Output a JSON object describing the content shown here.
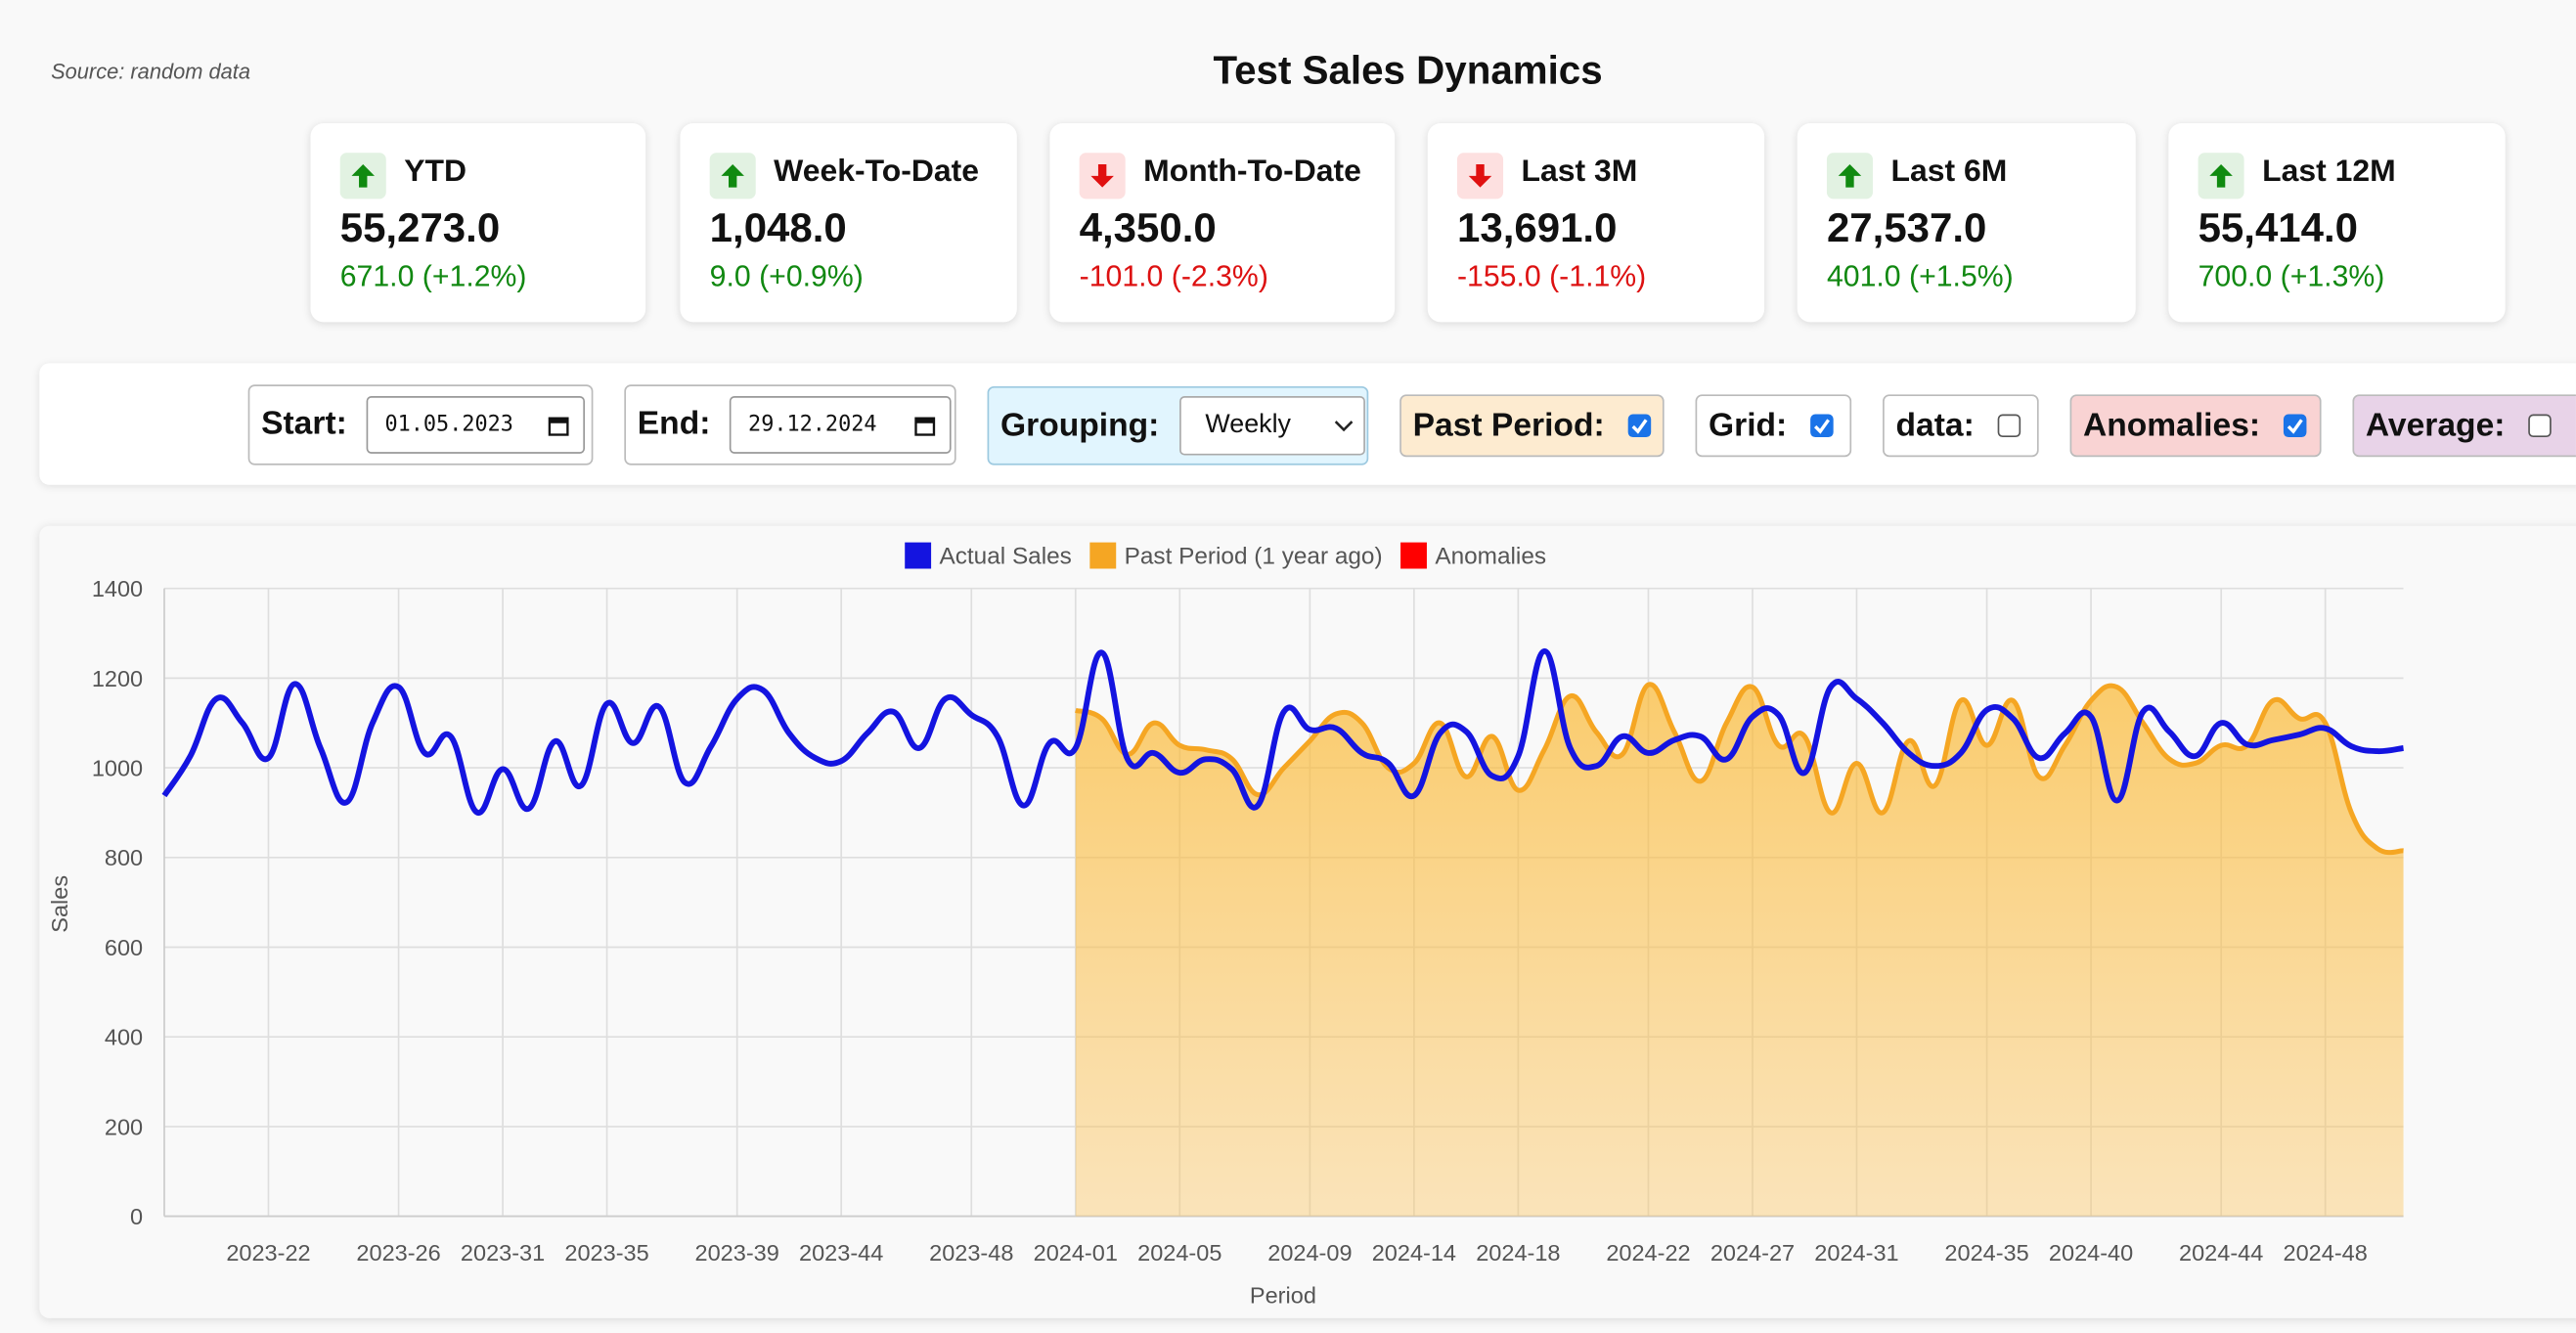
{
  "header": {
    "source": "Source: random data",
    "title": "Test Sales Dynamics"
  },
  "cards": [
    {
      "label": "YTD",
      "value": "55,273.0",
      "change": "671.0 (+1.2%)",
      "trend": "up"
    },
    {
      "label": "Week-To-Date",
      "value": "1,048.0",
      "change": "9.0 (+0.9%)",
      "trend": "up"
    },
    {
      "label": "Month-To-Date",
      "value": "4,350.0",
      "change": "-101.0 (-2.3%)",
      "trend": "down"
    },
    {
      "label": "Last 3M",
      "value": "13,691.0",
      "change": "-155.0 (-1.1%)",
      "trend": "down"
    },
    {
      "label": "Last 6M",
      "value": "27,537.0",
      "change": "401.0 (+1.5%)",
      "trend": "up"
    },
    {
      "label": "Last 12M",
      "value": "55,414.0",
      "change": "700.0 (+1.3%)",
      "trend": "up"
    }
  ],
  "controls": {
    "start": {
      "label": "Start:",
      "value": "01.05.2023"
    },
    "end": {
      "label": "End:",
      "value": "29.12.2024"
    },
    "grouping": {
      "label": "Grouping:",
      "value": "Weekly"
    },
    "toggles": [
      {
        "label": "Past Period:",
        "checked": true,
        "color": "#fdebd0"
      },
      {
        "label": "Grid:",
        "checked": true,
        "color": "#ffffff"
      },
      {
        "label": "data:",
        "checked": false,
        "color": "#ffffff"
      },
      {
        "label": "Anomalies:",
        "checked": true,
        "color": "#f9d3d3"
      },
      {
        "label": "Average:",
        "checked": false,
        "color": "#e8d3e8"
      }
    ]
  },
  "chart_data": {
    "type": "line",
    "x_label": "Period",
    "y_label": "Sales",
    "grid": true,
    "ylim": [
      0,
      1400
    ],
    "yticks": [
      0,
      200,
      400,
      600,
      800,
      1000,
      1200,
      1400
    ],
    "categories": [
      null,
      null,
      null,
      null,
      "2023-22",
      null,
      null,
      null,
      null,
      "2023-26",
      null,
      null,
      null,
      "2023-31",
      null,
      null,
      null,
      "2023-35",
      null,
      null,
      null,
      null,
      "2023-39",
      null,
      null,
      null,
      "2023-44",
      null,
      null,
      null,
      null,
      "2023-48",
      null,
      null,
      null,
      "2024-01",
      null,
      null,
      null,
      "2024-05",
      null,
      null,
      null,
      null,
      "2024-09",
      null,
      null,
      null,
      "2024-14",
      null,
      null,
      null,
      "2024-18",
      null,
      null,
      null,
      null,
      "2024-22",
      null,
      null,
      null,
      "2024-27",
      null,
      null,
      null,
      "2024-31",
      null,
      null,
      null,
      null,
      "2024-35",
      null,
      null,
      null,
      "2024-40",
      null,
      null,
      null,
      null,
      "2024-44",
      null,
      null,
      null,
      "2024-48",
      null,
      null,
      null
    ],
    "series": [
      {
        "name": "Actual Sales",
        "color": "#1414e0",
        "values": [
          938,
          1026,
          1154,
          1100,
          1022,
          1187,
          1044,
          923,
          1100,
          1180,
          1033,
          1070,
          901,
          997,
          909,
          1059,
          960,
          1143,
          1055,
          1136,
          967,
          1048,
          1154,
          1173,
          1077,
          1022,
          1015,
          1077,
          1125,
          1044,
          1154,
          1118,
          1070,
          916,
          1055,
          1044,
          1257,
          1019,
          1033,
          989,
          1019,
          997,
          916,
          1125,
          1085,
          1088,
          1033,
          1011,
          938,
          1077,
          1081,
          982,
          1026,
          1260,
          1044,
          1004,
          1070,
          1033,
          1062,
          1070,
          1019,
          1114,
          1118,
          989,
          1180,
          1154,
          1100,
          1033,
          1004,
          1033,
          1129,
          1110,
          1022,
          1077,
          1114,
          927,
          1125,
          1081,
          1026,
          1100,
          1052,
          1062,
          1074,
          1088,
          1048,
          1037,
          1044
        ]
      },
      {
        "name": "Past Period (1 year ago)",
        "color": "#f5a623",
        "fill": true,
        "values": [
          null,
          null,
          null,
          null,
          null,
          null,
          null,
          null,
          null,
          null,
          null,
          null,
          null,
          null,
          null,
          null,
          null,
          null,
          null,
          null,
          null,
          null,
          null,
          null,
          null,
          null,
          null,
          null,
          null,
          null,
          null,
          null,
          null,
          null,
          null,
          1128,
          1110,
          1030,
          1100,
          1050,
          1040,
          1020,
          940,
          1000,
          1060,
          1120,
          1100,
          1000,
          1010,
          1100,
          980,
          1070,
          950,
          1040,
          1160,
          1080,
          1030,
          1185,
          1080,
          970,
          1100,
          1180,
          1050,
          1070,
          900,
          1010,
          900,
          1060,
          960,
          1150,
          1050,
          1150,
          980,
          1050,
          1150,
          1180,
          1100,
          1020,
          1010,
          1050,
          1050,
          1150,
          1110,
          1100,
          900,
          820,
          815
        ]
      }
    ],
    "extra_legend": [
      {
        "name": "Anomalies",
        "color": "#ff0000"
      }
    ]
  }
}
